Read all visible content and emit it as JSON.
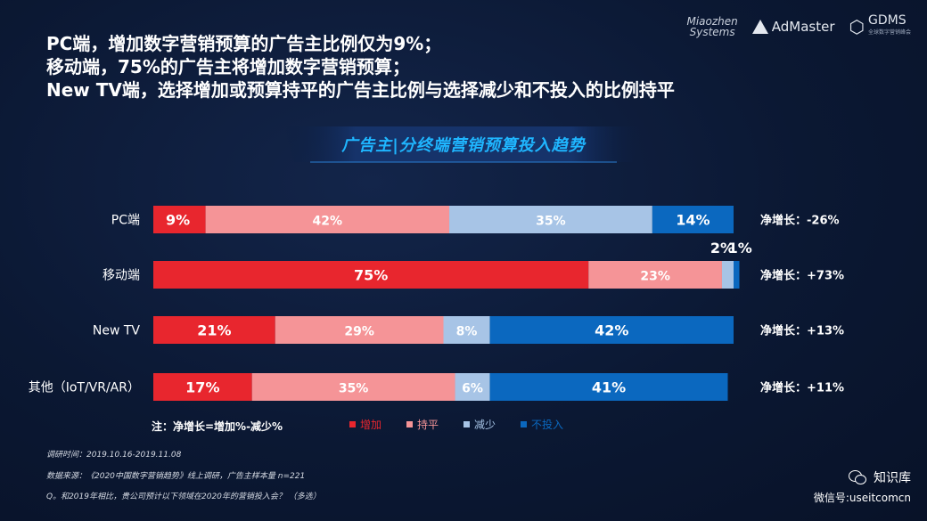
{
  "headline": {
    "line1": "PC端，增加数字营销预算的广告主比例仅为9%；",
    "line2": "移动端，75%的广告主将增加数字营销预算；",
    "line3": "New TV端，选择增加或预算持平的广告主比例与选择减少和不投入的比例持平"
  },
  "logos": {
    "miaozhen_line1": "Miaozhen",
    "miaozhen_line2": "Systems",
    "admaster": "AdMaster",
    "gdms": "GDMS",
    "gdms_sub": "全球数字营销峰会"
  },
  "banner_title": "广告主|分终端营销预算投入趋势",
  "chart_data": {
    "type": "bar",
    "orientation": "horizontal",
    "stacked": true,
    "categories": [
      "PC端",
      "移动端",
      "New TV",
      "其他（IoT/VR/AR）"
    ],
    "series": [
      {
        "name": "增加",
        "values": [
          9,
          75,
          21,
          17
        ],
        "color": "#e8262e"
      },
      {
        "name": "持平",
        "values": [
          42,
          23,
          29,
          35
        ],
        "color": "#f59497"
      },
      {
        "name": "减少",
        "values": [
          35,
          2,
          8,
          6
        ],
        "color": "#a7c4e6"
      },
      {
        "name": "不投入",
        "values": [
          14,
          1,
          42,
          41
        ],
        "color": "#0b68bf"
      }
    ],
    "net_growth_label": "净增长：",
    "net_growth": [
      "-26%",
      "+73%",
      "+13%",
      "+11%"
    ],
    "xlim": [
      0,
      100
    ],
    "legend_position": "bottom"
  },
  "note": "注：净增长=增加%-减少%",
  "footer": {
    "survey_time": "调研时间：2019.10.16-2019.11.08",
    "source": "数据来源：《2020中国数字营销趋势》线上调研，广告主样本量 n=221",
    "question": "Q。和2019年相比，贵公司预计以下领域在2020年的营销投入会？  （多选）"
  },
  "brand": {
    "name": "知识库",
    "wechat": "微信号:useitcomcn"
  },
  "colors": {
    "background": "#0b1833",
    "accent": "#1fb6ff"
  }
}
